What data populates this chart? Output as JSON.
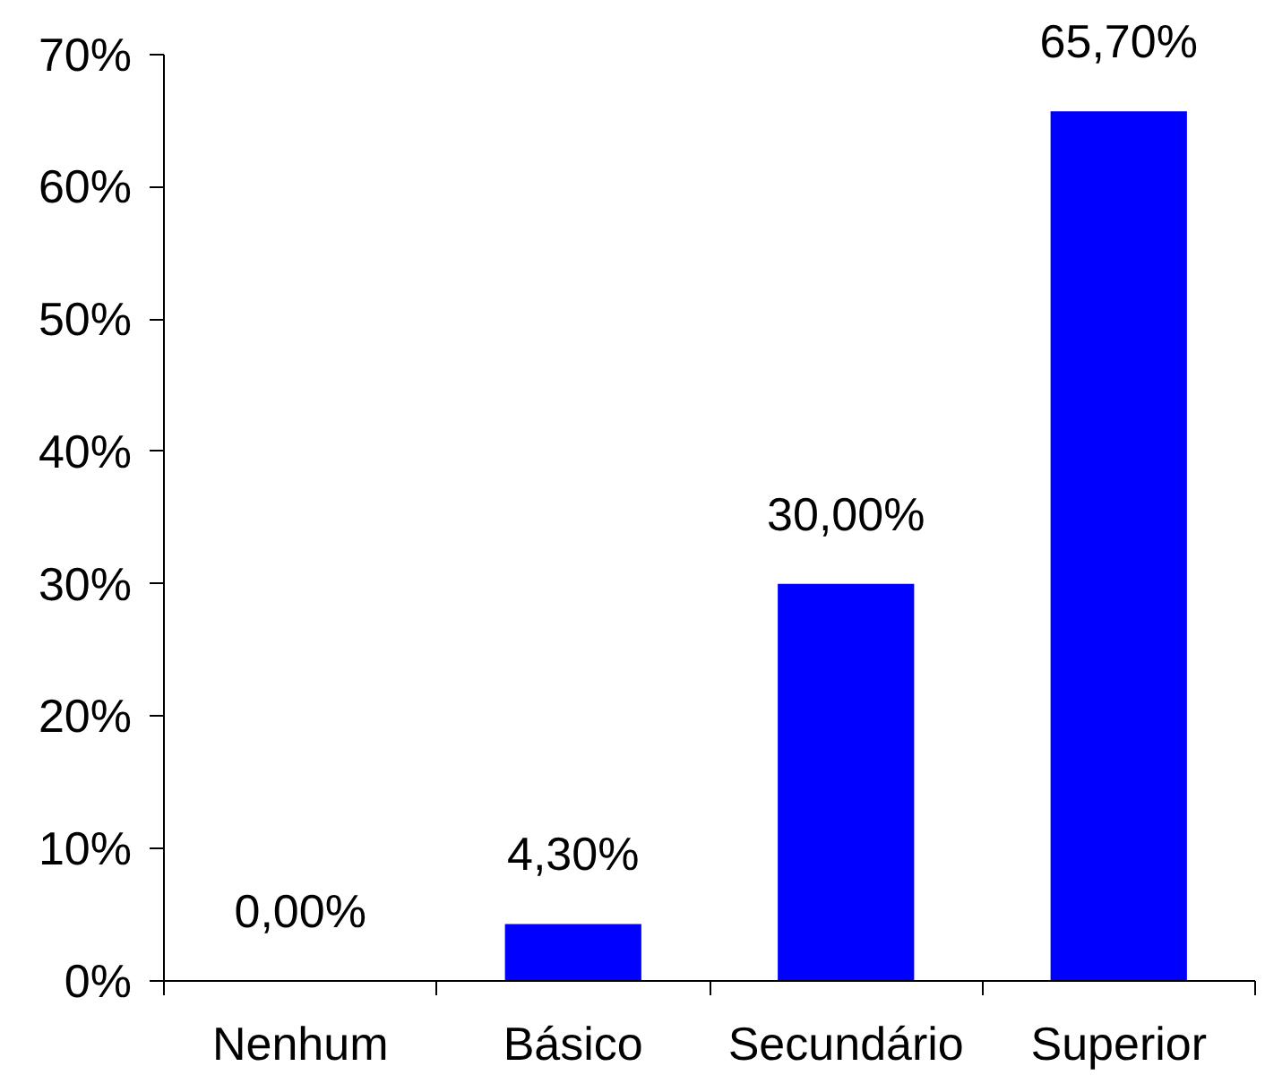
{
  "chart_data": {
    "type": "bar",
    "categories": [
      "Nenhum",
      "Básico",
      "Secundário",
      "Superior"
    ],
    "values": [
      0,
      4.3,
      30,
      65.7
    ],
    "color": "#0000ff",
    "value_labels": [
      "0,00%",
      "4,30%",
      "30,00%",
      "65,70%"
    ],
    "ylim": [
      0,
      70
    ],
    "yticks": [
      {
        "value": 0,
        "label": "0%"
      },
      {
        "value": 10,
        "label": "10%"
      },
      {
        "value": 20,
        "label": "20%"
      },
      {
        "value": 30,
        "label": "30%"
      },
      {
        "value": 40,
        "label": "40%"
      },
      {
        "value": 50,
        "label": "50%"
      },
      {
        "value": 60,
        "label": "60%"
      },
      {
        "value": 70,
        "label": "70%"
      }
    ]
  }
}
